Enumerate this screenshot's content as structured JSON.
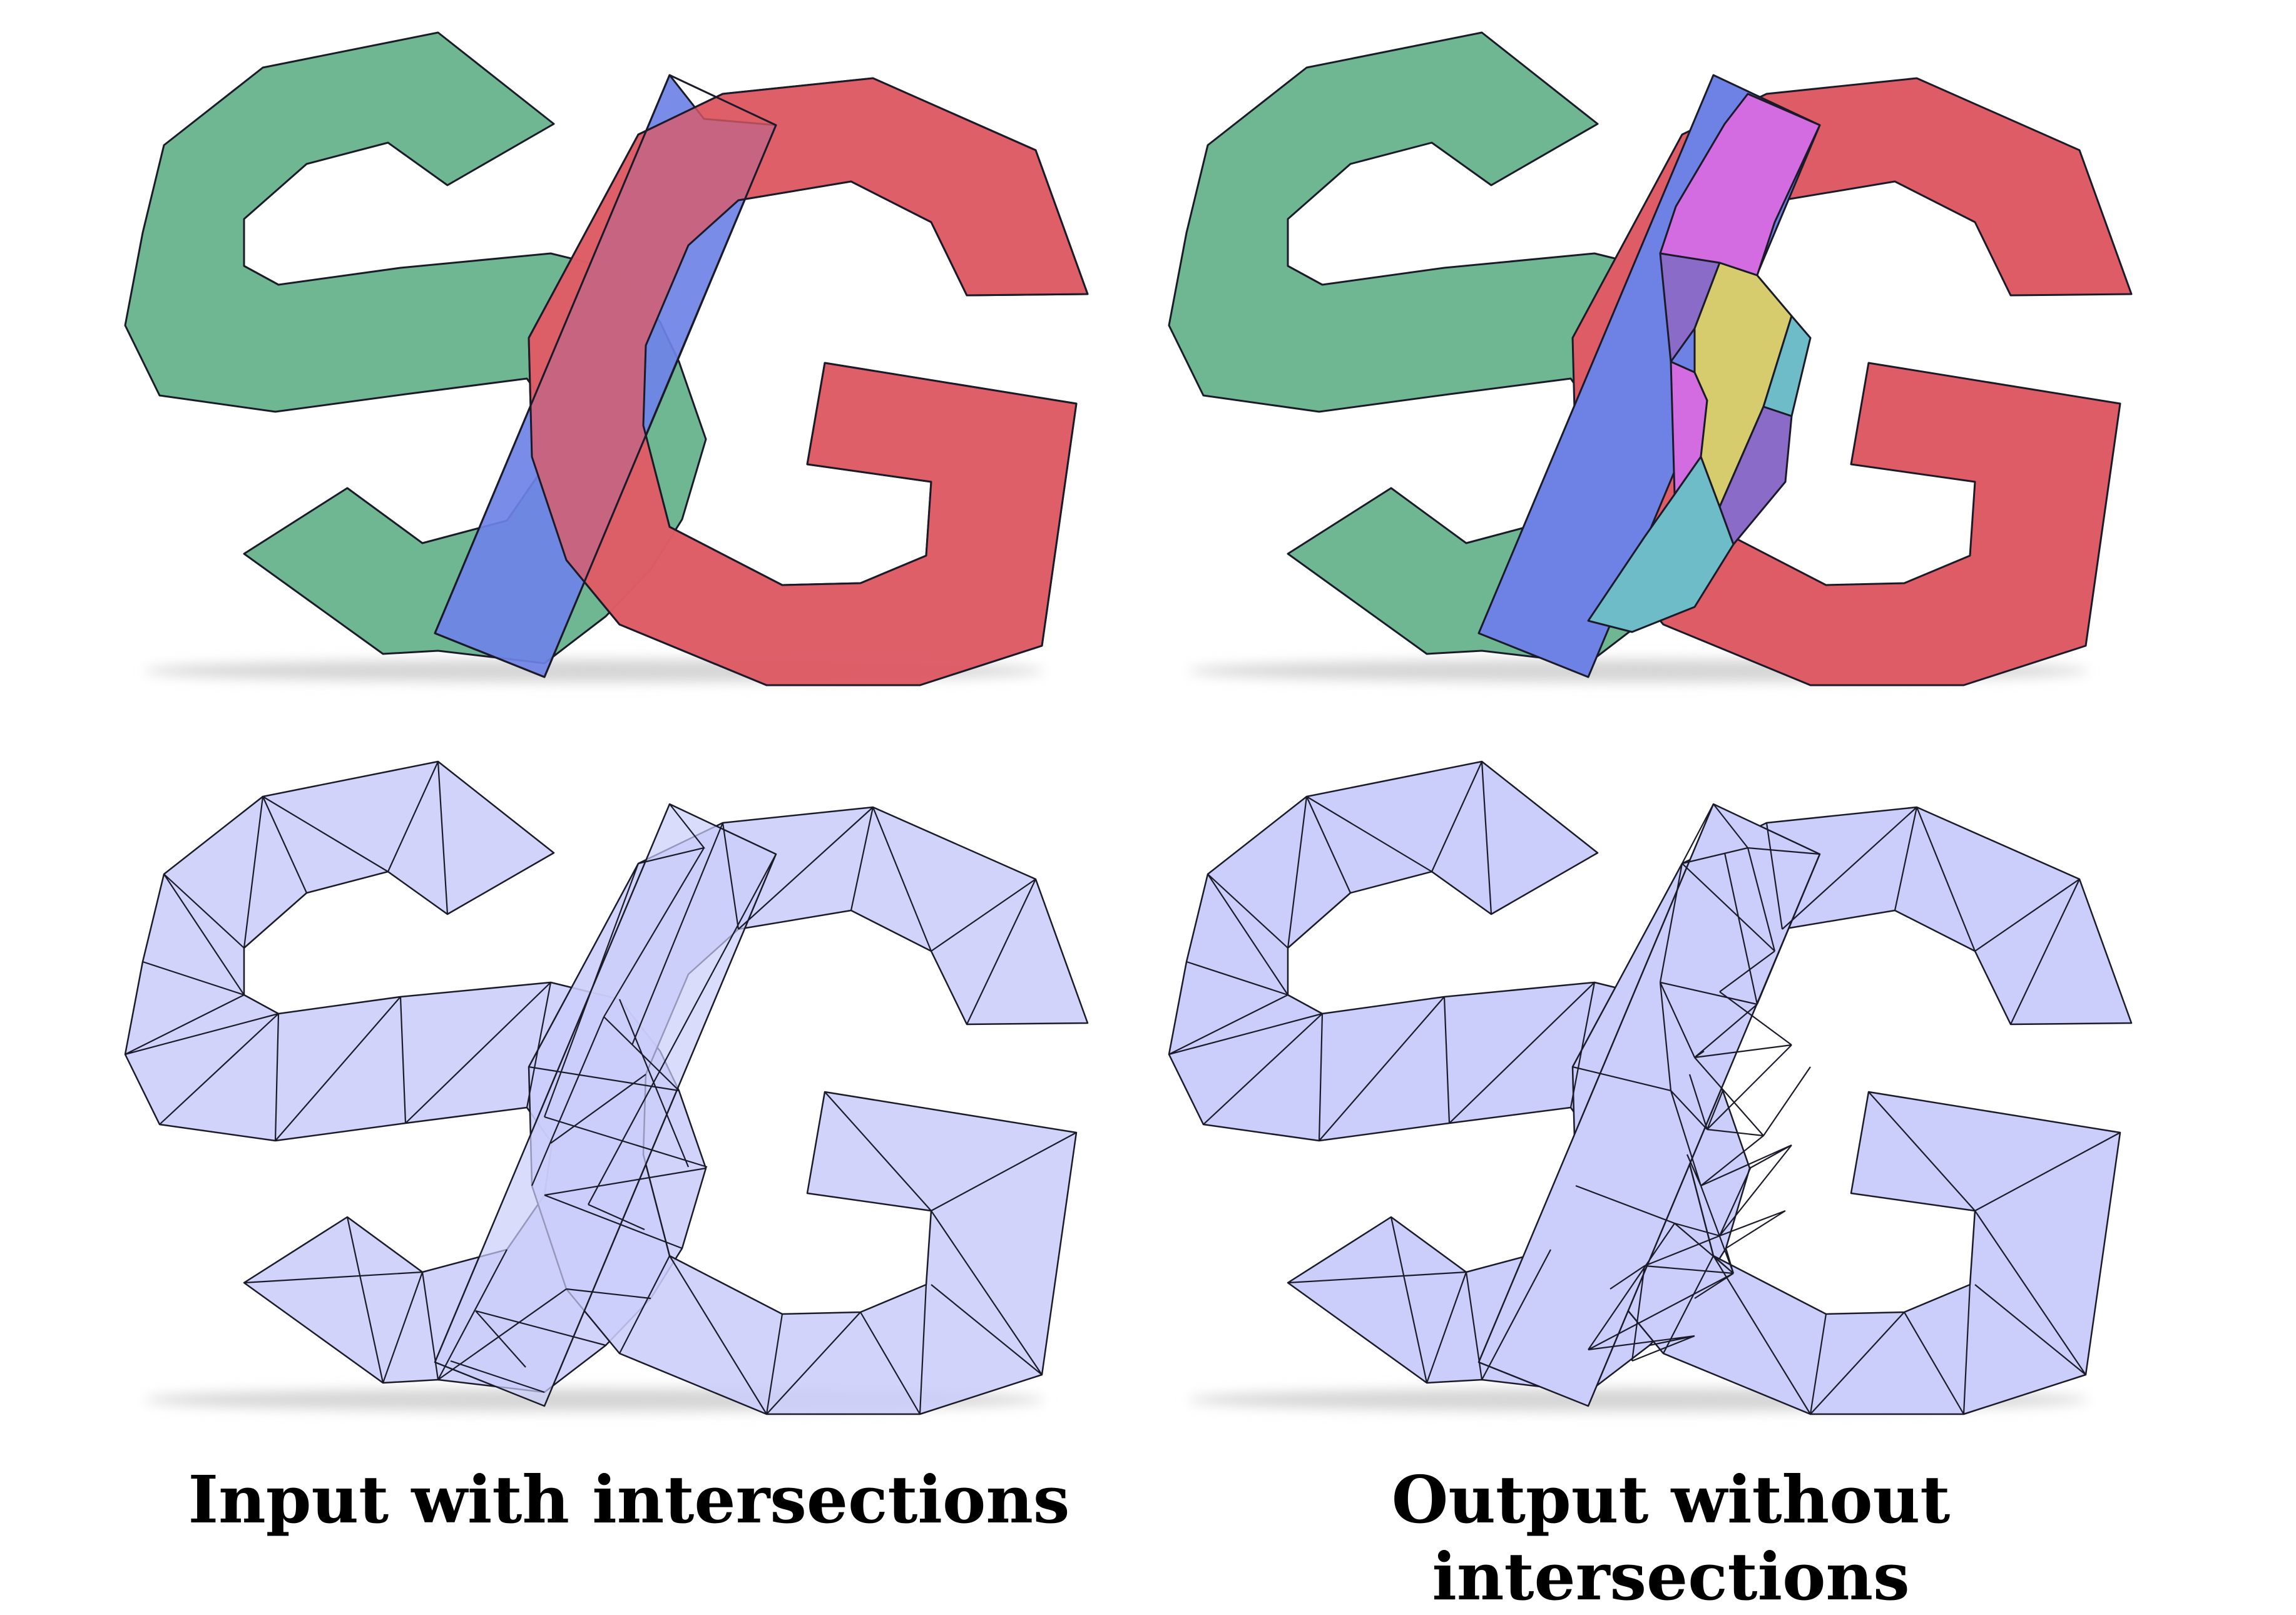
{
  "captions": {
    "left": "Input with intersections",
    "right": "Output without intersections"
  },
  "colors": {
    "s_letter": "#6fb793",
    "g_letter": "#de5c66",
    "strip": "#6e82e6",
    "overlap_magenta": "#d26ce0",
    "overlap_yellow": "#d6cc6e",
    "overlap_teal": "#6ebcc8",
    "overlap_purple": "#8a6cc8",
    "mesh_fill": "#cbcdfa",
    "outline": "#1a1a28",
    "shadow": "#d2d2d2"
  }
}
